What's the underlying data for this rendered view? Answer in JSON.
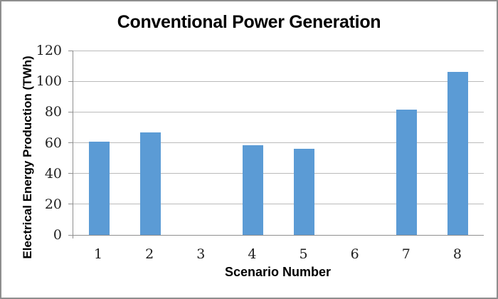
{
  "window": {
    "background_color": "#FFFFFF",
    "border_color": "#8E8E8E"
  },
  "chart_data": {
    "type": "bar",
    "title": "Conventional Power Generation",
    "xlabel": "Scenario Number",
    "ylabel": "Electrical Energy Production (TWh)",
    "categories": [
      "1",
      "2",
      "3",
      "4",
      "5",
      "6",
      "7",
      "8"
    ],
    "values": [
      60.5,
      66.5,
      0,
      58.5,
      56,
      0,
      81.5,
      106
    ],
    "ylim": [
      0,
      120
    ],
    "yticks": [
      0,
      20,
      40,
      60,
      80,
      100,
      120
    ],
    "grid": true,
    "legend": false,
    "bar_color": "#5B9BD5",
    "gridline_color": "#BBBBBB",
    "axis_color": "#8F8F8F",
    "tick_label_color": "#1F1F1F",
    "title_color": "#000000"
  }
}
